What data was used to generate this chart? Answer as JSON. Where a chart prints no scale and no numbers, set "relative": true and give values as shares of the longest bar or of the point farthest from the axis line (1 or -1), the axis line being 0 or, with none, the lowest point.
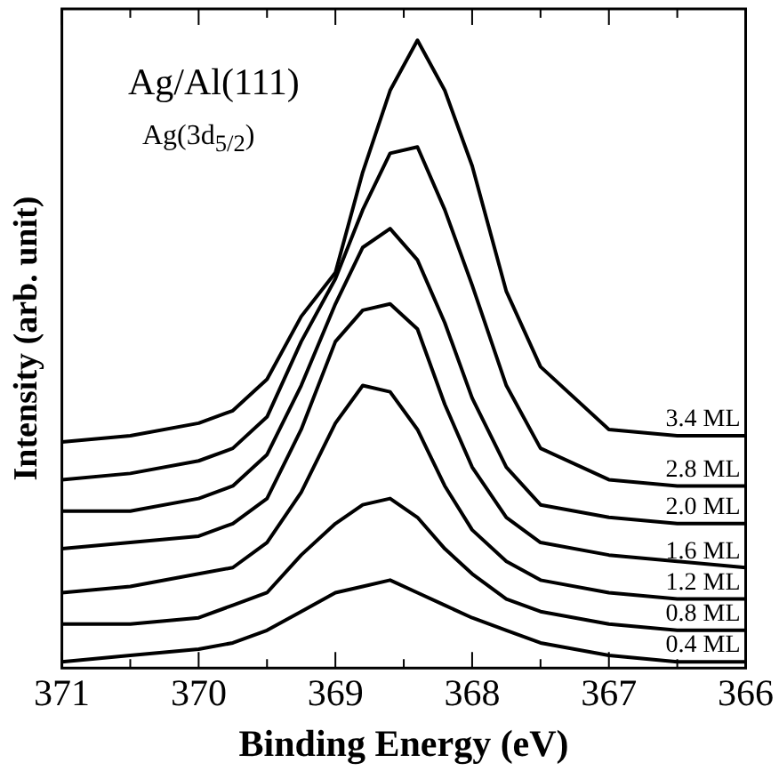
{
  "chart_data": {
    "type": "line",
    "xlabel": "Binding Energy (eV)",
    "ylabel": "Intensity (arb. unit)",
    "annotations": [
      "Ag/Al(111)",
      "Ag(3d$_{5/2}$)"
    ],
    "x": [
      371,
      370.5,
      370,
      369.75,
      369.5,
      369.25,
      369,
      368.8,
      368.6,
      368.4,
      368.2,
      368,
      367.75,
      367.5,
      367,
      366.5,
      366
    ],
    "xlim": [
      371,
      366
    ],
    "xticks": [
      371,
      {
        "value": 370.5,
        "label": null
      },
      370,
      {
        "value": 369.5,
        "label": null
      },
      369,
      {
        "value": 368.5,
        "label": null
      },
      368,
      {
        "value": 367.5,
        "label": null
      },
      367,
      {
        "value": 366.5,
        "label": null
      },
      366
    ],
    "relative": true,
    "tick_labels": "x",
    "grid": false,
    "legend": false,
    "marker": "none",
    "line_style": "solid",
    "series": [
      {
        "name": "0.4 ML",
        "color": "#000000",
        "values": [
          0.01,
          0.02,
          0.03,
          0.04,
          0.06,
          0.09,
          0.12,
          0.13,
          0.14,
          0.12,
          0.1,
          0.08,
          0.06,
          0.04,
          0.02,
          0.01,
          0.01
        ]
      },
      {
        "name": "0.8 ML",
        "color": "#000000",
        "values": [
          0.07,
          0.07,
          0.08,
          0.1,
          0.12,
          0.18,
          0.23,
          0.26,
          0.27,
          0.24,
          0.19,
          0.15,
          0.11,
          0.09,
          0.07,
          0.06,
          0.06
        ]
      },
      {
        "name": "1.2 ML",
        "color": "#000000",
        "values": [
          0.12,
          0.13,
          0.15,
          0.16,
          0.2,
          0.28,
          0.39,
          0.45,
          0.44,
          0.38,
          0.29,
          0.22,
          0.17,
          0.14,
          0.12,
          0.11,
          0.11
        ]
      },
      {
        "name": "1.6 ML",
        "color": "#000000",
        "values": [
          0.19,
          0.2,
          0.21,
          0.23,
          0.27,
          0.38,
          0.52,
          0.57,
          0.58,
          0.54,
          0.42,
          0.32,
          0.24,
          0.2,
          0.18,
          0.17,
          0.16
        ]
      },
      {
        "name": "2.0 ML",
        "color": "#000000",
        "values": [
          0.25,
          0.25,
          0.27,
          0.29,
          0.34,
          0.45,
          0.58,
          0.67,
          0.7,
          0.65,
          0.55,
          0.43,
          0.32,
          0.26,
          0.24,
          0.23,
          0.23
        ]
      },
      {
        "name": "2.8 ML",
        "color": "#000000",
        "values": [
          0.3,
          0.31,
          0.33,
          0.35,
          0.4,
          0.52,
          0.62,
          0.73,
          0.82,
          0.83,
          0.73,
          0.61,
          0.45,
          0.35,
          0.3,
          0.29,
          0.29
        ]
      },
      {
        "name": "3.4 ML",
        "color": "#000000",
        "values": [
          0.36,
          0.37,
          0.39,
          0.41,
          0.46,
          0.56,
          0.63,
          0.79,
          0.92,
          1,
          0.92,
          0.8,
          0.6,
          0.48,
          0.38,
          0.37,
          0.37
        ]
      }
    ]
  }
}
